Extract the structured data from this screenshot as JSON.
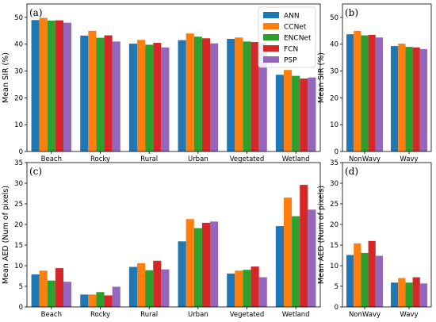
{
  "chart_data": [
    {
      "type": "bar",
      "panel_label": "(a)",
      "ylabel": "Mean SIR (%)",
      "ylim": [
        0,
        55
      ],
      "yticks": [
        0,
        10,
        20,
        30,
        40,
        50
      ],
      "categories": [
        "Beach",
        "Rocky",
        "Rural",
        "Urban",
        "Vegetated",
        "Wetland"
      ],
      "series": [
        {
          "name": "ANN",
          "values": [
            49,
            43.2,
            40.2,
            41.5,
            42,
            28.6
          ]
        },
        {
          "name": "CCNet",
          "values": [
            49.8,
            45,
            41.6,
            44,
            42.5,
            30.4
          ]
        },
        {
          "name": "ENCNet",
          "values": [
            48.8,
            42.4,
            39.8,
            42.8,
            41,
            28.2
          ]
        },
        {
          "name": "FCN",
          "values": [
            48.9,
            43.3,
            40.5,
            42.2,
            40.8,
            27.2
          ]
        },
        {
          "name": "PSP",
          "values": [
            48,
            41,
            38.8,
            40.3,
            40.5,
            27.6
          ]
        }
      ],
      "legend": {
        "position": "top-right"
      },
      "grid": false
    },
    {
      "type": "bar",
      "panel_label": "(b)",
      "ylabel": "Mean SIR (%)",
      "ylim": [
        0,
        55
      ],
      "yticks": [
        0,
        10,
        20,
        30,
        40,
        50
      ],
      "categories": [
        "NonWavy",
        "Wavy"
      ],
      "series": [
        {
          "name": "ANN",
          "values": [
            43.7,
            39.3
          ]
        },
        {
          "name": "CCNet",
          "values": [
            45,
            40.2
          ]
        },
        {
          "name": "ENCNet",
          "values": [
            43.3,
            39
          ]
        },
        {
          "name": "FCN",
          "values": [
            43.5,
            38.8
          ]
        },
        {
          "name": "PSP",
          "values": [
            42.5,
            38.2
          ]
        }
      ],
      "grid": false
    },
    {
      "type": "bar",
      "panel_label": "(c)",
      "ylabel": "Mean AED (Num of pixels)",
      "ylim": [
        0,
        35
      ],
      "yticks": [
        0,
        5,
        10,
        15,
        20,
        25,
        30,
        35
      ],
      "categories": [
        "Beach",
        "Rocky",
        "Rural",
        "Urban",
        "Vegetated",
        "Wetland"
      ],
      "series": [
        {
          "name": "ANN",
          "values": [
            7.9,
            3.0,
            9.7,
            15.9,
            8.1,
            19.6
          ]
        },
        {
          "name": "CCNet",
          "values": [
            8.8,
            3.0,
            10.6,
            21.3,
            8.8,
            26.5
          ]
        },
        {
          "name": "ENCNet",
          "values": [
            6.4,
            3.6,
            8.9,
            19.1,
            9.0,
            22.0
          ]
        },
        {
          "name": "FCN",
          "values": [
            9.4,
            2.8,
            11.2,
            20.4,
            9.8,
            29.6
          ]
        },
        {
          "name": "PSP",
          "values": [
            6.1,
            4.9,
            9.1,
            20.7,
            7.2,
            23.6
          ]
        }
      ],
      "grid": false
    },
    {
      "type": "bar",
      "panel_label": "(d)",
      "ylabel": "Mean AED (Num of pixels)",
      "ylim": [
        0,
        35
      ],
      "yticks": [
        0,
        5,
        10,
        15,
        20,
        25,
        30,
        35
      ],
      "categories": [
        "NonWavy",
        "Wavy"
      ],
      "series": [
        {
          "name": "ANN",
          "values": [
            12.6,
            5.9
          ]
        },
        {
          "name": "CCNet",
          "values": [
            15.4,
            7.0
          ]
        },
        {
          "name": "ENCNet",
          "values": [
            13.1,
            5.9
          ]
        },
        {
          "name": "FCN",
          "values": [
            16.0,
            7.2
          ]
        },
        {
          "name": "PSP",
          "values": [
            12.4,
            5.7
          ]
        }
      ],
      "grid": false
    }
  ],
  "colors": {
    "ANN": "#1f77b4",
    "CCNet": "#ff7f0e",
    "ENCNet": "#2ca02c",
    "FCN": "#d62728",
    "PSP": "#9467bd"
  }
}
